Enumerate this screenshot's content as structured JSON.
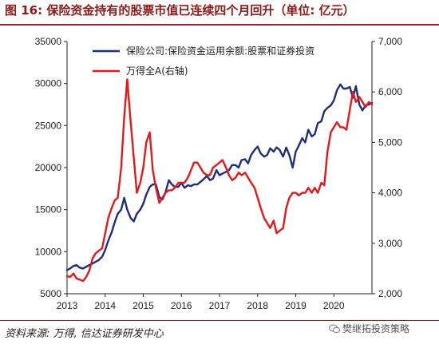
{
  "title": "图 16: 保险资金持有的股票市值已连续四个月回升（单位: 亿元）",
  "source": "资料来源: 万得, 信达证券研发中心",
  "watermark": "樊继拓投资策略",
  "chart_data": {
    "type": "line",
    "x_ticks": [
      "2013",
      "2014",
      "2015",
      "2016",
      "2017",
      "2018",
      "2019",
      "2020"
    ],
    "x_range": [
      2013.0,
      2021.0
    ],
    "y_left": {
      "range": [
        5000,
        35000
      ],
      "ticks": [
        "5000",
        "10000",
        "15000",
        "20000",
        "25000",
        "30000",
        "35000"
      ]
    },
    "y_right": {
      "range": [
        2000,
        7000
      ],
      "ticks": [
        "2,000",
        "3,000",
        "4,000",
        "5,000",
        "6,000",
        "7,000"
      ]
    },
    "series": [
      {
        "name": "保险公司:保险资金运用余额:股票和证券投资",
        "axis": "left",
        "color": "#1f2d7b",
        "x": [
          2013.0,
          2013.08,
          2013.17,
          2013.25,
          2013.33,
          2013.42,
          2013.5,
          2013.58,
          2013.67,
          2013.75,
          2013.83,
          2013.92,
          2014.0,
          2014.08,
          2014.17,
          2014.25,
          2014.33,
          2014.42,
          2014.5,
          2014.58,
          2014.67,
          2014.75,
          2014.83,
          2014.92,
          2015.0,
          2015.08,
          2015.17,
          2015.25,
          2015.33,
          2015.42,
          2015.5,
          2015.58,
          2015.67,
          2015.75,
          2015.83,
          2015.92,
          2016.0,
          2016.08,
          2016.17,
          2016.25,
          2016.33,
          2016.42,
          2016.5,
          2016.58,
          2016.67,
          2016.75,
          2016.83,
          2016.92,
          2017.0,
          2017.08,
          2017.17,
          2017.25,
          2017.33,
          2017.42,
          2017.5,
          2017.58,
          2017.67,
          2017.75,
          2017.83,
          2017.92,
          2018.0,
          2018.08,
          2018.17,
          2018.25,
          2018.33,
          2018.42,
          2018.5,
          2018.58,
          2018.67,
          2018.75,
          2018.83,
          2018.92,
          2019.0,
          2019.08,
          2019.17,
          2019.25,
          2019.33,
          2019.42,
          2019.5,
          2019.58,
          2019.67,
          2019.75,
          2019.83,
          2019.92,
          2020.0,
          2020.08,
          2020.17,
          2020.25,
          2020.33,
          2020.42,
          2020.5,
          2020.58,
          2020.67,
          2020.75,
          2020.83,
          2020.92,
          2021.0
        ],
        "y": [
          7800,
          8000,
          8300,
          8400,
          8100,
          8000,
          8200,
          8400,
          8600,
          8800,
          9000,
          9400,
          10200,
          11300,
          12300,
          13500,
          14500,
          15000,
          16400,
          15000,
          14000,
          13600,
          14500,
          15000,
          15700,
          16800,
          17700,
          18000,
          18000,
          16500,
          16200,
          17000,
          18500,
          18000,
          17700,
          17700,
          18200,
          17600,
          17900,
          17800,
          18000,
          18000,
          18300,
          18600,
          19000,
          18500,
          18700,
          19700,
          19100,
          19300,
          19500,
          19700,
          20300,
          20300,
          20000,
          20900,
          21000,
          20500,
          21500,
          22100,
          22500,
          21700,
          21300,
          21500,
          22300,
          21900,
          22400,
          22100,
          21300,
          22400,
          21500,
          20000,
          21900,
          22600,
          23500,
          23000,
          24500,
          23700,
          24000,
          25300,
          25500,
          26700,
          27100,
          27400,
          28000,
          29200,
          29900,
          29400,
          29400,
          29600,
          28300,
          29700,
          27500,
          26800,
          27400,
          27500,
          27700
        ]
      },
      {
        "name": "万得全A(右轴)",
        "axis": "right",
        "color": "#e3191c",
        "x": [
          2013.0,
          2013.08,
          2013.17,
          2013.25,
          2013.33,
          2013.42,
          2013.5,
          2013.58,
          2013.67,
          2013.75,
          2013.83,
          2013.92,
          2014.0,
          2014.08,
          2014.17,
          2014.25,
          2014.33,
          2014.42,
          2014.5,
          2014.58,
          2014.67,
          2014.75,
          2014.83,
          2014.92,
          2015.0,
          2015.08,
          2015.17,
          2015.25,
          2015.33,
          2015.42,
          2015.5,
          2015.58,
          2015.67,
          2015.75,
          2015.83,
          2015.92,
          2016.0,
          2016.08,
          2016.17,
          2016.25,
          2016.33,
          2016.42,
          2016.5,
          2016.58,
          2016.67,
          2016.75,
          2016.83,
          2016.92,
          2017.0,
          2017.08,
          2017.17,
          2017.25,
          2017.33,
          2017.42,
          2017.5,
          2017.58,
          2017.67,
          2017.75,
          2017.83,
          2017.92,
          2018.0,
          2018.08,
          2018.17,
          2018.25,
          2018.33,
          2018.42,
          2018.5,
          2018.58,
          2018.67,
          2018.75,
          2018.83,
          2018.92,
          2019.0,
          2019.08,
          2019.17,
          2019.25,
          2019.33,
          2019.42,
          2019.5,
          2019.58,
          2019.67,
          2019.75,
          2019.83,
          2019.92,
          2020.0,
          2020.08,
          2020.17,
          2020.25,
          2020.33,
          2020.42,
          2020.5,
          2020.58,
          2020.67,
          2020.75,
          2020.83,
          2020.92,
          2021.0
        ],
        "y": [
          2350,
          2330,
          2400,
          2300,
          2280,
          2250,
          2330,
          2450,
          2700,
          2800,
          2850,
          2900,
          3200,
          3500,
          3700,
          3850,
          3900,
          4500,
          5500,
          6250,
          5400,
          4700,
          4000,
          4200,
          4500,
          5000,
          5200,
          4450,
          4100,
          3800,
          3900,
          4000,
          4050,
          4050,
          4100,
          4200,
          4200,
          4200,
          4300,
          4450,
          4600,
          4600,
          4500,
          4400,
          4350,
          4350,
          4500,
          4550,
          4600,
          4650,
          4500,
          4350,
          4250,
          4300,
          4400,
          4350,
          4400,
          4300,
          4200,
          4100,
          3900,
          3700,
          3500,
          3400,
          3300,
          3450,
          3200,
          3250,
          3300,
          3700,
          3900,
          4000,
          4000,
          3950,
          4000,
          4000,
          4100,
          4000,
          4100,
          4000,
          4200,
          4150,
          4800,
          5200,
          5300,
          5400,
          5300,
          5300,
          5250,
          5650,
          6000,
          5800,
          5900,
          5800,
          5700,
          5800,
          5750
        ]
      }
    ]
  }
}
